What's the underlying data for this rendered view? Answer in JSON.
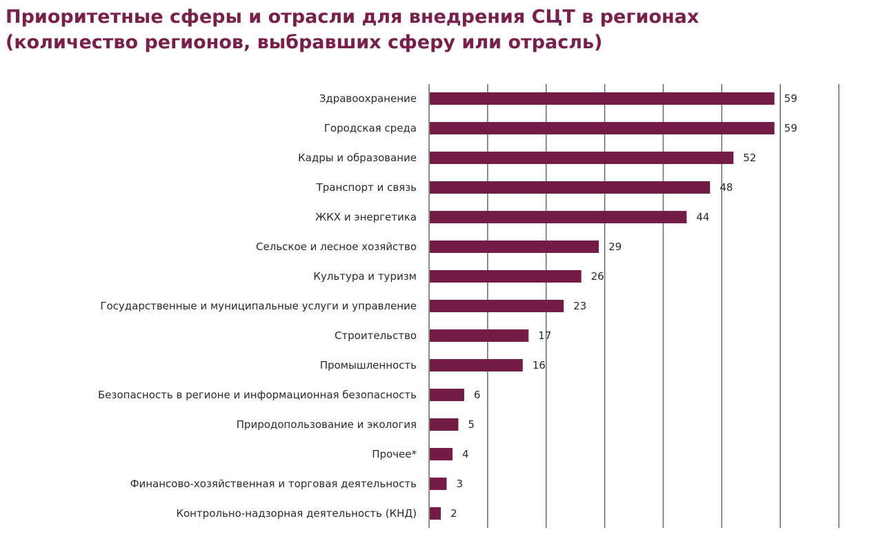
{
  "title_line1": "Приоритетные сферы и отрасли для внедрения СЦТ в регионах",
  "title_line2": "(количество регионов, выбравших сферу или отрасль)",
  "colors": {
    "title": "#7a1f4b",
    "bar": "#751b47",
    "grid": "#6f6f6f"
  },
  "chart_data": {
    "type": "bar",
    "orientation": "horizontal",
    "title": "Приоритетные сферы и отрасли для внедрения СЦТ в регионах",
    "subtitle": "(количество регионов, выбравших сферу или отрасль)",
    "xlim": [
      0,
      70
    ],
    "grid": true,
    "categories": [
      "Здравоохранение",
      "Городская среда",
      "Кадры и образование",
      "Транспорт и связь",
      "ЖКХ и энергетика",
      "Сельское и лесное хозяйство",
      "Культура и туризм",
      "Государственные и муниципальные услуги и управление",
      "Строительство",
      "Промышленность",
      "Безопасность в регионе и информационная безопасность",
      "Природопользование и экология",
      "Прочее*",
      "Финансово-хозяйственная и торговая деятельность",
      "Контрольно-надзорная деятельность (КНД)"
    ],
    "values": [
      59,
      59,
      52,
      48,
      44,
      29,
      26,
      23,
      17,
      16,
      6,
      5,
      4,
      3,
      2
    ]
  }
}
